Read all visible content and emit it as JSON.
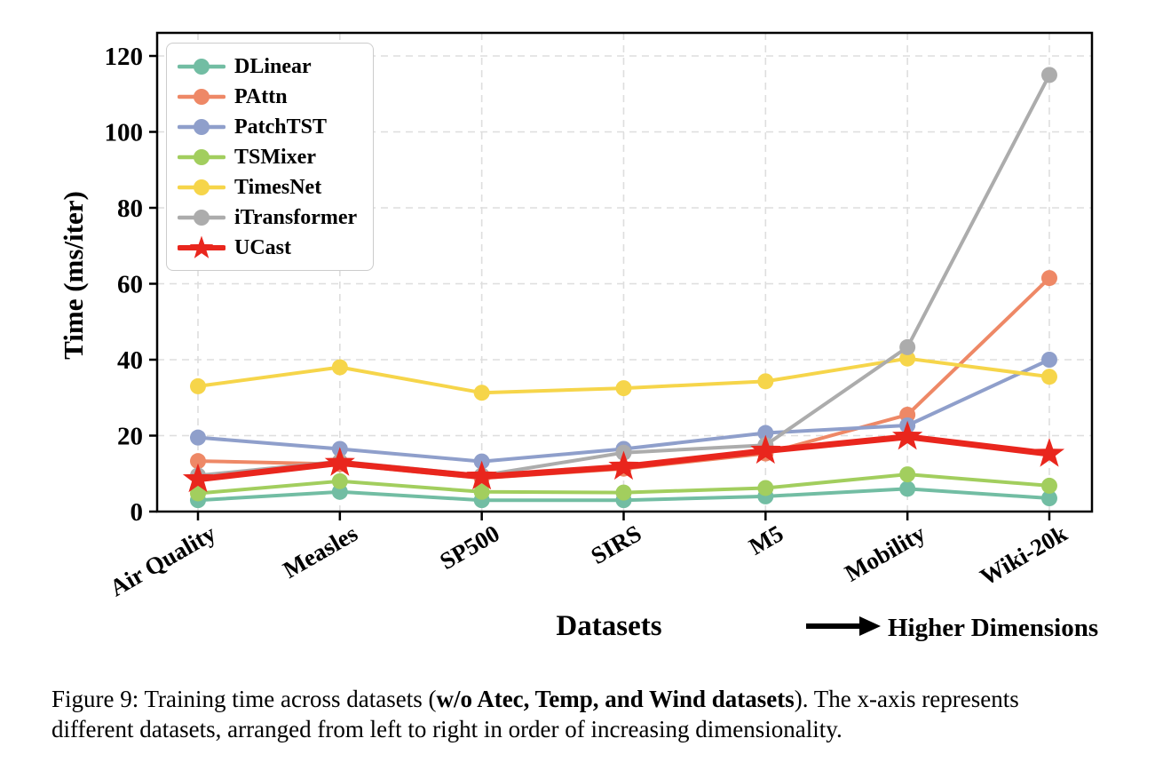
{
  "figure": {
    "caption": {
      "line1_prefix": "Figure 9: Training time across datasets (",
      "line1_bold": "w/o Atec, Temp, and Wind datasets",
      "line1_suffix": "). The x-axis represents",
      "line2": "different datasets, arranged from left to right in order of increasing dimensionality."
    }
  },
  "chart_data": {
    "type": "line",
    "title": "",
    "xlabel": "Datasets",
    "ylabel": "Time (ms/iter)",
    "annotation": "Higher Dimensions",
    "ylim": [
      0,
      126
    ],
    "yticks": [
      0,
      20,
      40,
      60,
      80,
      100,
      120
    ],
    "grid": true,
    "legend_position": "upper left",
    "categories": [
      "Air Quality",
      "Measles",
      "SP500",
      "SIRS",
      "M5",
      "Mobility",
      "Wiki-20k"
    ],
    "series": [
      {
        "name": "DLinear",
        "color": "#72BDA3",
        "marker": "circle",
        "values": [
          3.0,
          5.2,
          3.0,
          3.0,
          4.0,
          6.0,
          3.5
        ]
      },
      {
        "name": "PAttn",
        "color": "#EE8866",
        "marker": "circle",
        "values": [
          13.3,
          12.5,
          8.8,
          11.3,
          15.3,
          25.5,
          61.5
        ]
      },
      {
        "name": "PatchTST",
        "color": "#8F9FCB",
        "marker": "circle",
        "values": [
          19.5,
          16.5,
          13.2,
          16.5,
          20.7,
          22.7,
          40.0
        ]
      },
      {
        "name": "TSMixer",
        "color": "#A2CE5E",
        "marker": "circle",
        "values": [
          4.8,
          8.0,
          5.2,
          5.0,
          6.2,
          9.8,
          6.8
        ]
      },
      {
        "name": "TimesNet",
        "color": "#F6D54A",
        "marker": "circle",
        "values": [
          33.0,
          38.0,
          31.3,
          32.5,
          34.3,
          40.3,
          35.5
        ]
      },
      {
        "name": "iTransformer",
        "color": "#ACACAC",
        "marker": "circle",
        "values": [
          9.5,
          13.2,
          9.5,
          15.5,
          17.5,
          43.3,
          115.0
        ]
      },
      {
        "name": "UCast",
        "color": "#E9261D",
        "marker": "star",
        "values": [
          8.5,
          12.8,
          9.2,
          11.8,
          16.0,
          19.7,
          15.2
        ]
      }
    ]
  }
}
